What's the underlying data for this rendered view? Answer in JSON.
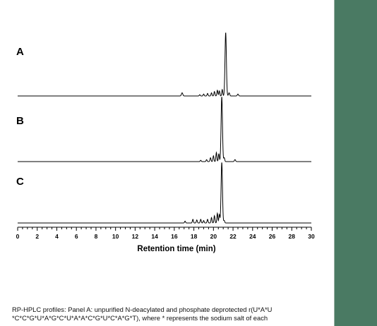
{
  "chart_data": {
    "type": "line",
    "xlabel": "Retention time (min)",
    "xlim": [
      0,
      30
    ],
    "x_ticks": [
      0,
      2,
      4,
      6,
      8,
      10,
      12,
      14,
      16,
      18,
      20,
      22,
      24,
      26,
      28,
      30
    ],
    "x_tick_labels": [
      "0",
      "2",
      "4",
      "6",
      "8",
      "10",
      "12",
      "14",
      "16",
      "18",
      "20",
      "22",
      "24",
      "26",
      "28",
      "30"
    ],
    "grid": false,
    "series": [
      {
        "name": "A",
        "peaks": [
          {
            "x": 16.8,
            "h": 0.05,
            "w": 0.07
          },
          {
            "x": 18.6,
            "h": 0.02,
            "w": 0.05
          },
          {
            "x": 19.0,
            "h": 0.03,
            "w": 0.05
          },
          {
            "x": 19.4,
            "h": 0.04,
            "w": 0.05
          },
          {
            "x": 19.8,
            "h": 0.05,
            "w": 0.05
          },
          {
            "x": 20.1,
            "h": 0.07,
            "w": 0.05
          },
          {
            "x": 20.4,
            "h": 0.09,
            "w": 0.05
          },
          {
            "x": 20.6,
            "h": 0.08,
            "w": 0.05
          },
          {
            "x": 20.9,
            "h": 0.1,
            "w": 0.05
          },
          {
            "x": 21.25,
            "h": 1.0,
            "w": 0.07
          },
          {
            "x": 21.6,
            "h": 0.05,
            "w": 0.06
          },
          {
            "x": 22.5,
            "h": 0.03,
            "w": 0.06
          }
        ]
      },
      {
        "name": "B",
        "peaks": [
          {
            "x": 18.7,
            "h": 0.02,
            "w": 0.05
          },
          {
            "x": 19.3,
            "h": 0.03,
            "w": 0.05
          },
          {
            "x": 19.7,
            "h": 0.06,
            "w": 0.05
          },
          {
            "x": 20.0,
            "h": 0.09,
            "w": 0.05
          },
          {
            "x": 20.3,
            "h": 0.14,
            "w": 0.05
          },
          {
            "x": 20.55,
            "h": 0.12,
            "w": 0.05
          },
          {
            "x": 20.85,
            "h": 1.0,
            "w": 0.07
          },
          {
            "x": 21.1,
            "h": 0.06,
            "w": 0.05
          },
          {
            "x": 22.2,
            "h": 0.03,
            "w": 0.06
          }
        ]
      },
      {
        "name": "C",
        "peaks": [
          {
            "x": 17.1,
            "h": 0.03,
            "w": 0.05
          },
          {
            "x": 17.9,
            "h": 0.06,
            "w": 0.05
          },
          {
            "x": 18.3,
            "h": 0.05,
            "w": 0.05
          },
          {
            "x": 18.7,
            "h": 0.06,
            "w": 0.05
          },
          {
            "x": 19.0,
            "h": 0.04,
            "w": 0.05
          },
          {
            "x": 19.4,
            "h": 0.06,
            "w": 0.05
          },
          {
            "x": 19.8,
            "h": 0.09,
            "w": 0.05
          },
          {
            "x": 20.1,
            "h": 0.12,
            "w": 0.05
          },
          {
            "x": 20.4,
            "h": 0.16,
            "w": 0.05
          },
          {
            "x": 20.6,
            "h": 0.14,
            "w": 0.05
          },
          {
            "x": 20.85,
            "h": 1.0,
            "w": 0.07
          },
          {
            "x": 21.1,
            "h": 0.04,
            "w": 0.05
          }
        ]
      }
    ]
  },
  "caption": "RP-HPLC profiles: Panel A: unpurified N-deacylated and phosphate deprotected r(U*A*U *C*C*G*U*A*G*C*U*A*A*C*G*U*C*A*G*T), where * represents the sodium salt of each",
  "colors": {
    "background_strip": "#4a7a63",
    "panel": "#ffffff",
    "trace": "#000000"
  }
}
